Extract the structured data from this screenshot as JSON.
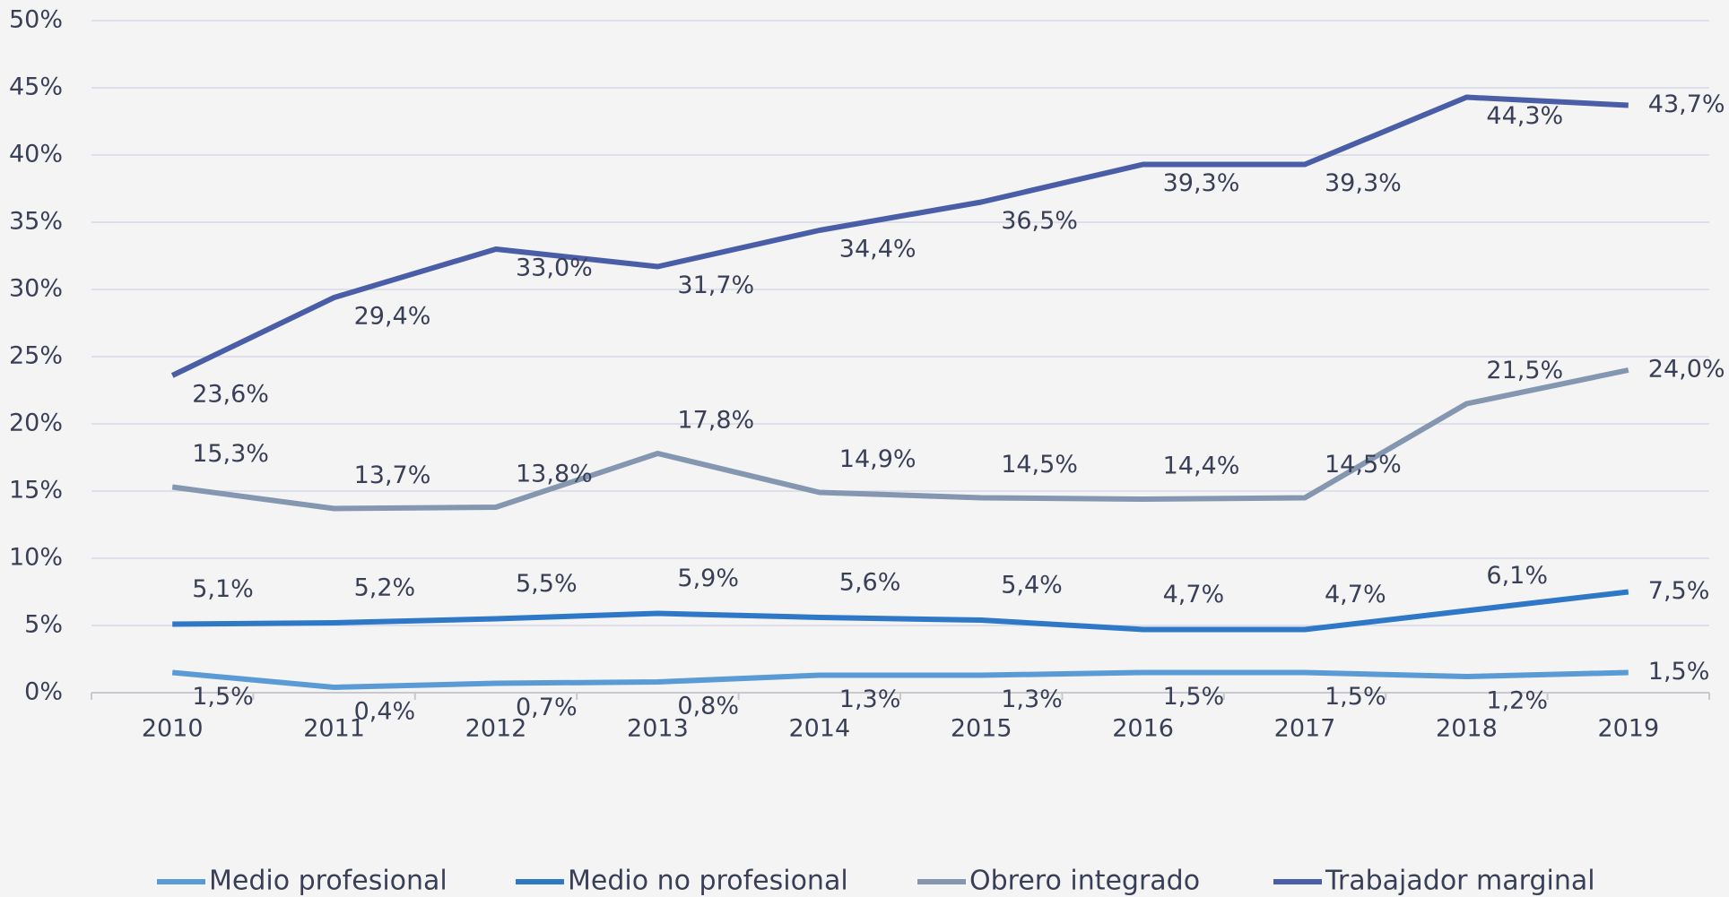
{
  "chart_data": {
    "type": "line",
    "categories": [
      "2010",
      "2011",
      "2012",
      "2013",
      "2014",
      "2015",
      "2016",
      "2017",
      "2018",
      "2019"
    ],
    "series": [
      {
        "name": "Medio profesional",
        "color": "#5b9bd5",
        "values": [
          1.5,
          0.4,
          0.7,
          0.8,
          1.3,
          1.3,
          1.5,
          1.5,
          1.2,
          1.5
        ],
        "value_labels": [
          "1,5%",
          "0,4%",
          "0,7%",
          "0,8%",
          "1,3%",
          "1,3%",
          "1,5%",
          "1,5%",
          "1,2%",
          "1,5%"
        ]
      },
      {
        "name": "Medio no profesional",
        "color": "#2f78c8",
        "values": [
          5.1,
          5.2,
          5.5,
          5.9,
          5.6,
          5.4,
          4.7,
          4.7,
          6.1,
          7.5
        ],
        "value_labels": [
          "5,1%",
          "5,2%",
          "5,5%",
          "5,9%",
          "5,6%",
          "5,4%",
          "4,7%",
          "4,7%",
          "6,1%",
          "7,5%"
        ]
      },
      {
        "name": "Obrero integrado",
        "color": "#8496b0",
        "values": [
          15.3,
          13.7,
          13.8,
          17.8,
          14.9,
          14.5,
          14.4,
          14.5,
          21.5,
          24.0
        ],
        "value_labels": [
          "15,3%",
          "13,7%",
          "13,8%",
          "17,8%",
          "14,9%",
          "14,5%",
          "14,4%",
          "14,5%",
          "21,5%",
          "24,0%"
        ]
      },
      {
        "name": "Trabajador marginal",
        "color": "#4a5ea8",
        "values": [
          23.6,
          29.4,
          33.0,
          31.7,
          34.4,
          36.5,
          39.3,
          39.3,
          44.3,
          43.7
        ],
        "value_labels": [
          "23,6%",
          "29,4%",
          "33,0%",
          "31,7%",
          "34,4%",
          "36,5%",
          "39,3%",
          "39,3%",
          "44,3%",
          "43,7%"
        ]
      }
    ],
    "ylim": [
      0,
      50
    ],
    "yticks": [
      {
        "value": 0,
        "label": "0%"
      },
      {
        "value": 5,
        "label": "5%"
      },
      {
        "value": 10,
        "label": "10%"
      },
      {
        "value": 15,
        "label": "15%"
      },
      {
        "value": 20,
        "label": "20%"
      },
      {
        "value": 25,
        "label": "25%"
      },
      {
        "value": 30,
        "label": "30%"
      },
      {
        "value": 35,
        "label": "35%"
      },
      {
        "value": 40,
        "label": "40%"
      },
      {
        "value": 45,
        "label": "45%"
      },
      {
        "value": 50,
        "label": "50%"
      }
    ],
    "grid": true,
    "legend": "bottom"
  }
}
